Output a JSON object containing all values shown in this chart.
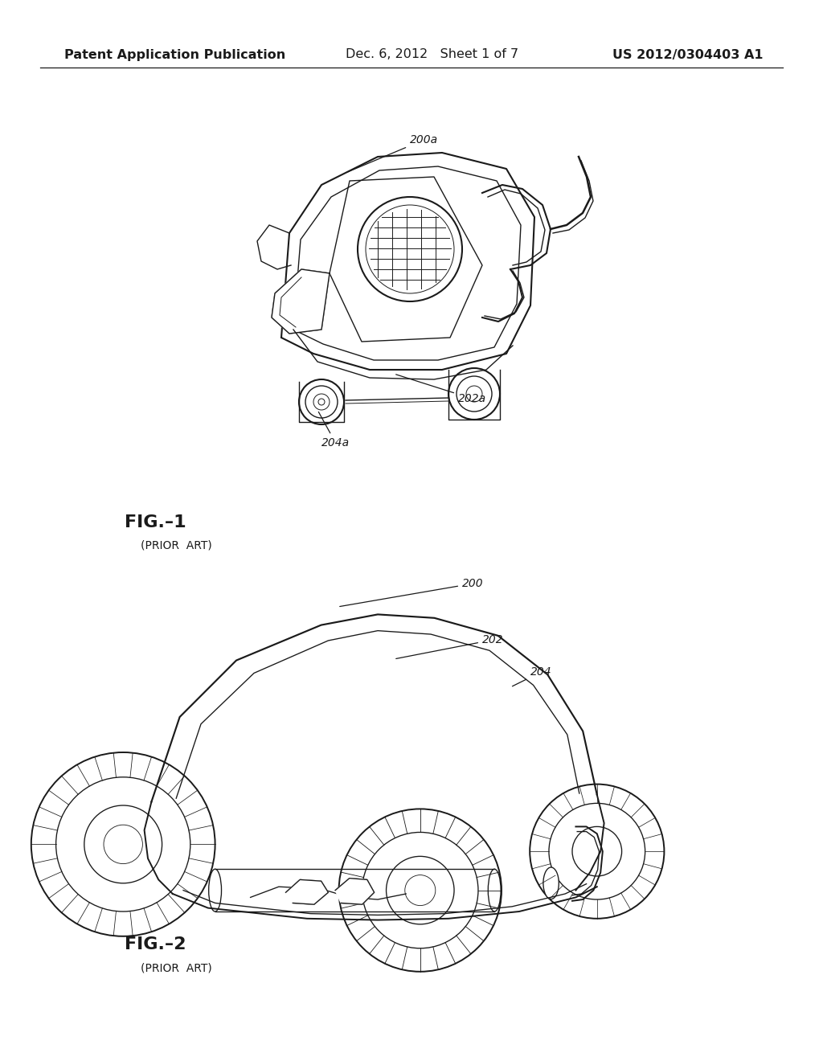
{
  "background_color": "#ffffff",
  "header_left": "Patent Application Publication",
  "header_center": "Dec. 6, 2012   Sheet 1 of 7",
  "header_right": "US 2012/0304403 A1",
  "header_fontsize": 11.5,
  "text_color": "#1a1a1a",
  "line_color": "#1a1a1a",
  "fig1_label": "FIG.–1",
  "fig1_sublabel": "(PRIOR  ART)",
  "fig2_label": "FIG.–2",
  "fig2_sublabel": "(PRIOR  ART)"
}
